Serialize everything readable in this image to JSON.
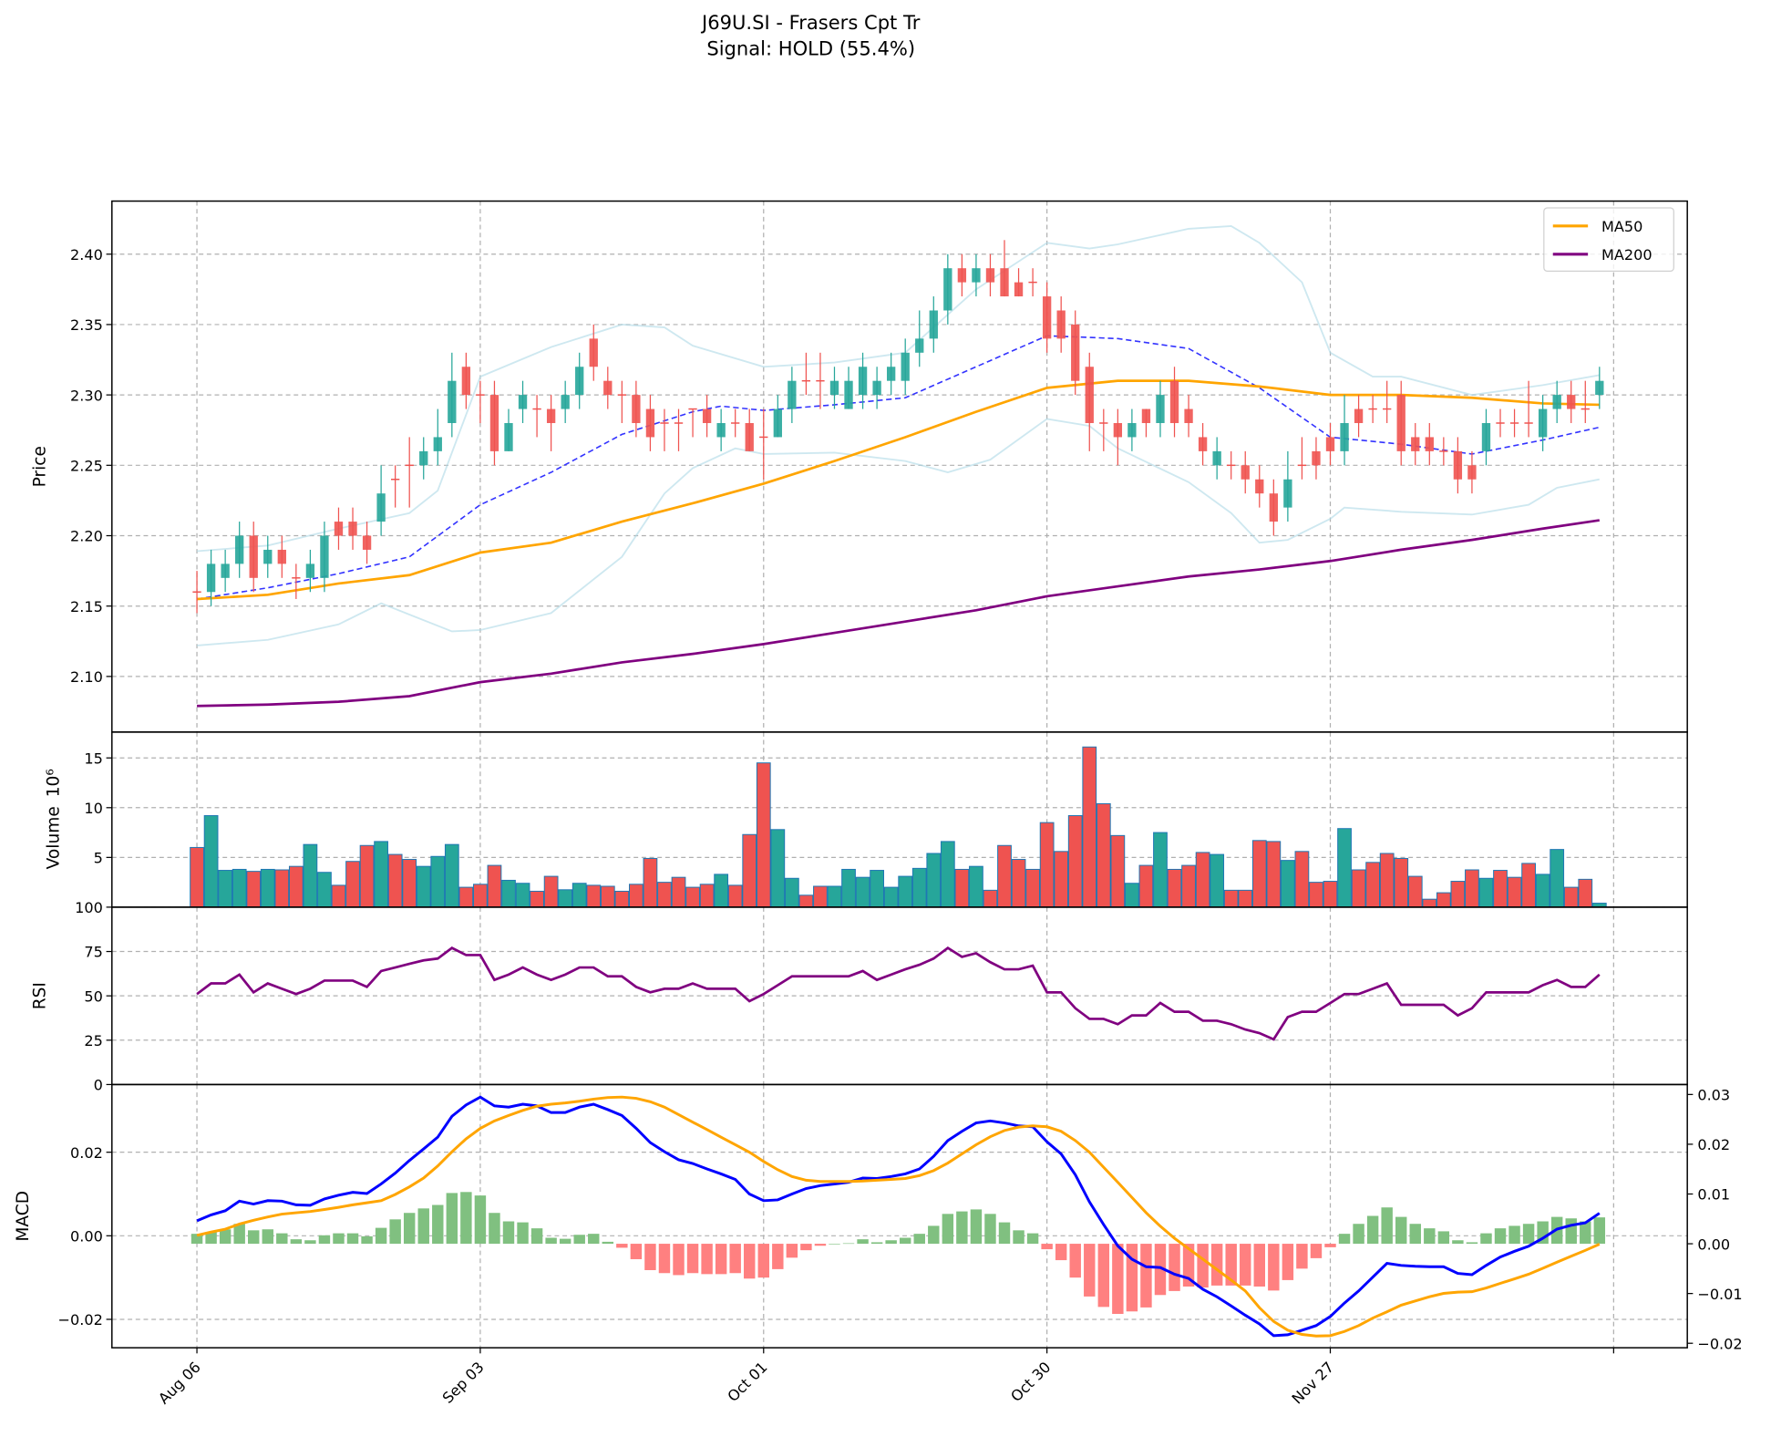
{
  "chart_data": {
    "type": "candlestick",
    "title": "J69U.SI - Frasers Cpt Tr",
    "subtitle": "Signal: HOLD (55.4%)",
    "xlim": [
      -6,
      105.2
    ],
    "x_ticks": [
      {
        "index": 0,
        "label": "Aug 06"
      },
      {
        "index": 20,
        "label": "Sep 03"
      },
      {
        "index": 40,
        "label": "Oct 01"
      },
      {
        "index": 60,
        "label": "Oct 30"
      },
      {
        "index": 80,
        "label": "Nov 27"
      },
      {
        "index": 100,
        "label": ""
      }
    ],
    "colors": {
      "up": "#26a69a",
      "down": "#ef5350",
      "ma50": "#ffa500",
      "ma200": "#800080",
      "bb_mid": "#3333ff",
      "bb_band": "#add8e6",
      "rsi": "#800080",
      "macd": "#0000ff",
      "signal": "#ffa500",
      "hist_pos": "#80c080",
      "hist_neg": "#ff8080"
    },
    "price": {
      "ylabel": "Price",
      "ylim": [
        2.0605,
        2.4377
      ],
      "yticks": [
        "2.10",
        "2.15",
        "2.20",
        "2.25",
        "2.30",
        "2.35",
        "2.40"
      ],
      "legend": {
        "position": "top-right",
        "entries": [
          {
            "label": "MA50",
            "color": "#ffa500"
          },
          {
            "label": "MA200",
            "color": "#800080"
          }
        ]
      },
      "open": [
        2.16,
        2.16,
        2.17,
        2.18,
        2.2,
        2.18,
        2.19,
        2.17,
        2.17,
        2.17,
        2.21,
        2.21,
        2.2,
        2.21,
        2.24,
        2.25,
        2.25,
        2.26,
        2.28,
        2.32,
        2.3,
        2.3,
        2.26,
        2.29,
        2.29,
        2.29,
        2.29,
        2.3,
        2.34,
        2.31,
        2.3,
        2.3,
        2.29,
        2.28,
        2.28,
        2.29,
        2.29,
        2.27,
        2.28,
        2.28,
        2.27,
        2.27,
        2.29,
        2.31,
        2.31,
        2.3,
        2.29,
        2.3,
        2.3,
        2.31,
        2.31,
        2.33,
        2.34,
        2.36,
        2.39,
        2.38,
        2.39,
        2.39,
        2.38,
        2.38,
        2.37,
        2.36,
        2.35,
        2.32,
        2.28,
        2.28,
        2.27,
        2.29,
        2.28,
        2.31,
        2.29,
        2.27,
        2.25,
        2.25,
        2.25,
        2.24,
        2.23,
        2.22,
        2.25,
        2.26,
        2.27,
        2.26,
        2.29,
        2.29,
        2.29,
        2.3,
        2.27,
        2.27,
        2.26,
        2.26,
        2.25,
        2.26,
        2.28,
        2.28,
        2.28,
        2.27,
        2.29,
        2.3,
        2.29,
        2.3
      ],
      "close": [
        2.16,
        2.18,
        2.18,
        2.2,
        2.17,
        2.19,
        2.18,
        2.17,
        2.18,
        2.2,
        2.2,
        2.2,
        2.19,
        2.23,
        2.24,
        2.25,
        2.26,
        2.27,
        2.31,
        2.3,
        2.3,
        2.26,
        2.28,
        2.3,
        2.29,
        2.28,
        2.3,
        2.32,
        2.32,
        2.3,
        2.3,
        2.28,
        2.27,
        2.28,
        2.28,
        2.29,
        2.28,
        2.28,
        2.28,
        2.26,
        2.27,
        2.29,
        2.31,
        2.31,
        2.31,
        2.31,
        2.31,
        2.32,
        2.31,
        2.32,
        2.33,
        2.34,
        2.36,
        2.39,
        2.38,
        2.39,
        2.38,
        2.37,
        2.37,
        2.38,
        2.34,
        2.34,
        2.31,
        2.28,
        2.28,
        2.27,
        2.28,
        2.28,
        2.3,
        2.28,
        2.28,
        2.26,
        2.26,
        2.25,
        2.24,
        2.23,
        2.21,
        2.24,
        2.25,
        2.25,
        2.26,
        2.28,
        2.28,
        2.29,
        2.29,
        2.26,
        2.26,
        2.26,
        2.26,
        2.24,
        2.24,
        2.28,
        2.28,
        2.28,
        2.28,
        2.29,
        2.3,
        2.29,
        2.29,
        2.31
      ],
      "high": [
        2.175,
        2.19,
        2.19,
        2.21,
        2.21,
        2.2,
        2.2,
        2.18,
        2.19,
        2.21,
        2.22,
        2.22,
        2.21,
        2.25,
        2.25,
        2.27,
        2.27,
        2.29,
        2.33,
        2.33,
        2.31,
        2.31,
        2.29,
        2.31,
        2.3,
        2.3,
        2.31,
        2.33,
        2.35,
        2.32,
        2.31,
        2.31,
        2.3,
        2.29,
        2.29,
        2.29,
        2.3,
        2.29,
        2.29,
        2.29,
        2.29,
        2.3,
        2.32,
        2.33,
        2.33,
        2.32,
        2.32,
        2.33,
        2.32,
        2.33,
        2.34,
        2.36,
        2.37,
        2.4,
        2.4,
        2.4,
        2.4,
        2.41,
        2.39,
        2.39,
        2.38,
        2.37,
        2.36,
        2.33,
        2.29,
        2.29,
        2.29,
        2.29,
        2.31,
        2.32,
        2.3,
        2.28,
        2.27,
        2.26,
        2.26,
        2.25,
        2.24,
        2.26,
        2.27,
        2.27,
        2.28,
        2.3,
        2.3,
        2.3,
        2.31,
        2.31,
        2.28,
        2.28,
        2.27,
        2.27,
        2.26,
        2.29,
        2.29,
        2.29,
        2.31,
        2.3,
        2.31,
        2.31,
        2.31,
        2.32
      ],
      "low": [
        2.145,
        2.15,
        2.16,
        2.17,
        2.16,
        2.17,
        2.17,
        2.155,
        2.16,
        2.16,
        2.19,
        2.19,
        2.18,
        2.2,
        2.22,
        2.22,
        2.24,
        2.25,
        2.27,
        2.29,
        2.28,
        2.25,
        2.26,
        2.28,
        2.27,
        2.26,
        2.28,
        2.29,
        2.31,
        2.29,
        2.28,
        2.27,
        2.26,
        2.26,
        2.26,
        2.27,
        2.27,
        2.26,
        2.27,
        2.26,
        2.24,
        2.27,
        2.28,
        2.3,
        2.29,
        2.29,
        2.29,
        2.29,
        2.29,
        2.3,
        2.3,
        2.32,
        2.33,
        2.35,
        2.37,
        2.37,
        2.37,
        2.37,
        2.37,
        2.37,
        2.33,
        2.33,
        2.3,
        2.26,
        2.26,
        2.25,
        2.26,
        2.27,
        2.27,
        2.27,
        2.27,
        2.25,
        2.24,
        2.24,
        2.23,
        2.22,
        2.2,
        2.21,
        2.24,
        2.24,
        2.25,
        2.25,
        2.27,
        2.28,
        2.28,
        2.25,
        2.25,
        2.25,
        2.25,
        2.23,
        2.23,
        2.25,
        2.27,
        2.27,
        2.27,
        2.26,
        2.28,
        2.28,
        2.28,
        2.29
      ],
      "ma50": {
        "x": [
          0,
          5,
          10,
          15,
          20,
          25,
          30,
          35,
          40,
          45,
          50,
          55,
          60,
          65,
          70,
          75,
          80,
          85,
          90,
          95,
          99
        ],
        "y": [
          2.155,
          2.158,
          2.166,
          2.172,
          2.188,
          2.195,
          2.21,
          2.223,
          2.237,
          2.253,
          2.27,
          2.288,
          2.305,
          2.31,
          2.31,
          2.306,
          2.3,
          2.3,
          2.298,
          2.294,
          2.293
        ]
      },
      "ma200": {
        "x": [
          0,
          5,
          10,
          15,
          20,
          25,
          30,
          35,
          40,
          45,
          50,
          55,
          60,
          65,
          70,
          75,
          80,
          85,
          90,
          95,
          99
        ],
        "y": [
          2.079,
          2.08,
          2.082,
          2.086,
          2.096,
          2.102,
          2.11,
          2.116,
          2.123,
          2.131,
          2.139,
          2.147,
          2.157,
          2.164,
          2.171,
          2.176,
          2.182,
          2.19,
          2.197,
          2.205,
          2.211
        ]
      },
      "bb_mid": {
        "x": [
          0,
          5,
          10,
          15,
          20,
          25,
          30,
          35,
          37,
          40,
          45,
          50,
          55,
          60,
          65,
          70,
          75,
          80,
          85,
          90,
          95,
          99
        ],
        "y": [
          2.155,
          2.163,
          2.173,
          2.185,
          2.222,
          2.245,
          2.272,
          2.288,
          2.292,
          2.289,
          2.293,
          2.298,
          2.32,
          2.342,
          2.34,
          2.333,
          2.305,
          2.27,
          2.265,
          2.258,
          2.268,
          2.277
        ]
      },
      "bb_upper": {
        "x": [
          0,
          5,
          10,
          15,
          17,
          20,
          25,
          30,
          33,
          35,
          40,
          45,
          50,
          55,
          60,
          63,
          65,
          70,
          73,
          75,
          78,
          80,
          83,
          85,
          90,
          95,
          99
        ],
        "y": [
          2.189,
          2.193,
          2.205,
          2.216,
          2.232,
          2.313,
          2.334,
          2.35,
          2.348,
          2.335,
          2.32,
          2.323,
          2.33,
          2.375,
          2.408,
          2.404,
          2.407,
          2.418,
          2.42,
          2.408,
          2.38,
          2.33,
          2.313,
          2.313,
          2.3,
          2.307,
          2.314
        ]
      },
      "bb_lower": {
        "x": [
          0,
          5,
          10,
          13,
          15,
          18,
          20,
          25,
          30,
          33,
          35,
          38,
          40,
          45,
          50,
          53,
          56,
          60,
          63,
          65,
          70,
          73,
          75,
          77,
          80,
          81,
          85,
          90,
          94,
          96,
          99
        ],
        "y": [
          2.122,
          2.126,
          2.137,
          2.152,
          2.144,
          2.132,
          2.133,
          2.145,
          2.185,
          2.23,
          2.248,
          2.262,
          2.258,
          2.259,
          2.253,
          2.245,
          2.254,
          2.283,
          2.278,
          2.262,
          2.238,
          2.216,
          2.195,
          2.197,
          2.212,
          2.22,
          2.217,
          2.215,
          2.222,
          2.234,
          2.24
        ]
      }
    },
    "volume": {
      "ylabel": "Volume",
      "offset": "10⁶",
      "ylim": [
        0,
        17.6
      ],
      "yticks": [
        "5",
        "10",
        "15"
      ],
      "values": [
        6.0,
        9.2,
        3.7,
        3.8,
        3.6,
        3.8,
        3.75,
        4.1,
        6.3,
        3.5,
        2.2,
        4.6,
        6.2,
        6.6,
        5.3,
        4.8,
        4.1,
        5.1,
        6.3,
        2.0,
        2.3,
        4.2,
        2.7,
        2.4,
        1.6,
        3.1,
        1.75,
        2.4,
        2.2,
        2.1,
        1.6,
        2.3,
        4.9,
        2.5,
        3.0,
        2.0,
        2.3,
        3.3,
        2.2,
        7.3,
        14.5,
        7.8,
        2.9,
        1.2,
        2.1,
        2.1,
        3.8,
        3.0,
        3.7,
        2.0,
        3.1,
        3.9,
        5.4,
        6.6,
        3.8,
        4.1,
        1.7,
        6.2,
        4.8,
        3.8,
        8.5,
        5.6,
        9.2,
        16.1,
        10.4,
        7.2,
        2.4,
        4.2,
        7.5,
        3.8,
        4.2,
        5.5,
        5.3,
        1.7,
        1.7,
        6.7,
        6.6,
        4.7,
        5.6,
        2.5,
        2.6,
        7.9,
        3.75,
        4.5,
        5.4,
        4.9,
        3.1,
        0.8,
        1.45,
        2.6,
        3.75,
        2.9,
        3.7,
        3.0,
        4.4,
        3.3,
        5.8,
        2.0,
        2.8,
        0.4
      ]
    },
    "rsi": {
      "ylabel": "RSI",
      "ylim": [
        0,
        100
      ],
      "yticks": [
        "0",
        "25",
        "50",
        "75",
        "100"
      ],
      "values": [
        51,
        57,
        57,
        62,
        52,
        57,
        54,
        51,
        54,
        58.6,
        58.6,
        58.6,
        55,
        64,
        66,
        68,
        70,
        71,
        77,
        73,
        73,
        59,
        62,
        66,
        62,
        59,
        62,
        66,
        66,
        61,
        61,
        55,
        52,
        54,
        54,
        57,
        54,
        54,
        54,
        47,
        51,
        56,
        61,
        61,
        61,
        61,
        61,
        64,
        59,
        62,
        65,
        67.5,
        71,
        77,
        72,
        74,
        69,
        65,
        65,
        67,
        52,
        52,
        43,
        37,
        37,
        34,
        39,
        39,
        46,
        41,
        41,
        36,
        36,
        34,
        31,
        29,
        25.5,
        38,
        41,
        41,
        46,
        51,
        51,
        54,
        57,
        45,
        45,
        45,
        45,
        39,
        43,
        52,
        52,
        52,
        52,
        56,
        59,
        55,
        55,
        62
      ]
    },
    "macd": {
      "ylabel": "MACD",
      "ylim": [
        -0.0268,
        0.0362
      ],
      "yticks": [
        "−0.02",
        "0.00",
        "0.02"
      ],
      "right_ylim": [
        -0.0209,
        0.032
      ],
      "right_yticks": [
        "−0.02",
        "−0.01",
        "0.00",
        "0.01",
        "0.02",
        "0.03"
      ],
      "macd": [
        0.0036,
        0.005,
        0.006,
        0.0083,
        0.0076,
        0.0084,
        0.0083,
        0.0074,
        0.0073,
        0.0088,
        0.0097,
        0.0104,
        0.0101,
        0.0124,
        0.015,
        0.018,
        0.0208,
        0.0236,
        0.0286,
        0.0313,
        0.0332,
        0.0311,
        0.0308,
        0.0315,
        0.0311,
        0.0295,
        0.0295,
        0.0308,
        0.0315,
        0.0302,
        0.0288,
        0.0257,
        0.0223,
        0.0201,
        0.0182,
        0.0173,
        0.016,
        0.0148,
        0.0135,
        0.01,
        0.0084,
        0.0086,
        0.01,
        0.0113,
        0.012,
        0.0124,
        0.0128,
        0.0138,
        0.0137,
        0.0142,
        0.0148,
        0.016,
        0.019,
        0.0228,
        0.025,
        0.027,
        0.0275,
        0.027,
        0.0263,
        0.0261,
        0.0225,
        0.0196,
        0.0146,
        0.0081,
        0.0027,
        -0.0024,
        -0.0056,
        -0.0074,
        -0.0076,
        -0.0092,
        -0.0102,
        -0.0128,
        -0.0146,
        -0.0168,
        -0.019,
        -0.0211,
        -0.0239,
        -0.0237,
        -0.0226,
        -0.0215,
        -0.0193,
        -0.0161,
        -0.0132,
        -0.0099,
        -0.0066,
        -0.0071,
        -0.0073,
        -0.0074,
        -0.0074,
        -0.009,
        -0.0093,
        -0.0071,
        -0.0051,
        -0.0037,
        -0.0025,
        -0.0006,
        0.0016,
        0.0025,
        0.0031,
        0.0054
      ],
      "signal": [
        0.0001,
        0.0009,
        0.0016,
        0.0028,
        0.0037,
        0.0045,
        0.0052,
        0.0055,
        0.0058,
        0.0063,
        0.0068,
        0.0074,
        0.0079,
        0.0084,
        0.0099,
        0.0117,
        0.0138,
        0.0167,
        0.0201,
        0.0232,
        0.0257,
        0.0275,
        0.0288,
        0.03,
        0.031,
        0.0315,
        0.0318,
        0.0322,
        0.0327,
        0.0331,
        0.0332,
        0.0329,
        0.0321,
        0.0308,
        0.029,
        0.0272,
        0.0254,
        0.0236,
        0.0218,
        0.02,
        0.0178,
        0.0158,
        0.0142,
        0.0133,
        0.013,
        0.013,
        0.013,
        0.0131,
        0.0133,
        0.0135,
        0.0137,
        0.0144,
        0.0156,
        0.0174,
        0.0196,
        0.0218,
        0.0237,
        0.0252,
        0.026,
        0.0263,
        0.0261,
        0.025,
        0.0228,
        0.02,
        0.0164,
        0.0128,
        0.0092,
        0.0055,
        0.0023,
        -0.0006,
        -0.0031,
        -0.0056,
        -0.0081,
        -0.0106,
        -0.0132,
        -0.0172,
        -0.0205,
        -0.0226,
        -0.0236,
        -0.024,
        -0.0239,
        -0.0229,
        -0.0215,
        -0.0197,
        -0.0182,
        -0.0166,
        -0.0156,
        -0.0146,
        -0.0138,
        -0.0135,
        -0.0134,
        -0.0125,
        -0.0114,
        -0.0103,
        -0.0092,
        -0.0078,
        -0.0063,
        -0.0049,
        -0.0035,
        -0.002
      ],
      "histogram": [
        0.002,
        0.0023,
        0.0029,
        0.004,
        0.0027,
        0.0029,
        0.0021,
        0.0009,
        0.0007,
        0.0017,
        0.0021,
        0.0021,
        0.0015,
        0.0032,
        0.0049,
        0.0062,
        0.0071,
        0.0078,
        0.0102,
        0.0104,
        0.0097,
        0.0062,
        0.0045,
        0.0043,
        0.0031,
        0.0012,
        0.001,
        0.0018,
        0.002,
        0.0004,
        -0.0008,
        -0.0031,
        -0.0053,
        -0.0059,
        -0.0063,
        -0.0059,
        -0.0061,
        -0.0061,
        -0.0059,
        -0.007,
        -0.0068,
        -0.0051,
        -0.0028,
        -0.0013,
        -0.0004,
        0,
        0.0001,
        0.0009,
        0.0003,
        0.0007,
        0.0012,
        0.002,
        0.0036,
        0.006,
        0.0065,
        0.0069,
        0.006,
        0.0043,
        0.0027,
        0.0021,
        -0.0011,
        -0.0033,
        -0.0068,
        -0.0106,
        -0.0127,
        -0.0141,
        -0.0136,
        -0.0128,
        -0.0103,
        -0.0095,
        -0.0086,
        -0.0088,
        -0.0084,
        -0.0084,
        -0.0084,
        -0.0086,
        -0.0094,
        -0.0073,
        -0.005,
        -0.0029,
        -0.0007,
        0.002,
        0.004,
        0.0056,
        0.0073,
        0.0054,
        0.004,
        0.0031,
        0.0025,
        0.0007,
        0.0003,
        0.0021,
        0.0031,
        0.0036,
        0.004,
        0.0045,
        0.0054,
        0.0051,
        0.0045,
        0.0053
      ]
    }
  }
}
